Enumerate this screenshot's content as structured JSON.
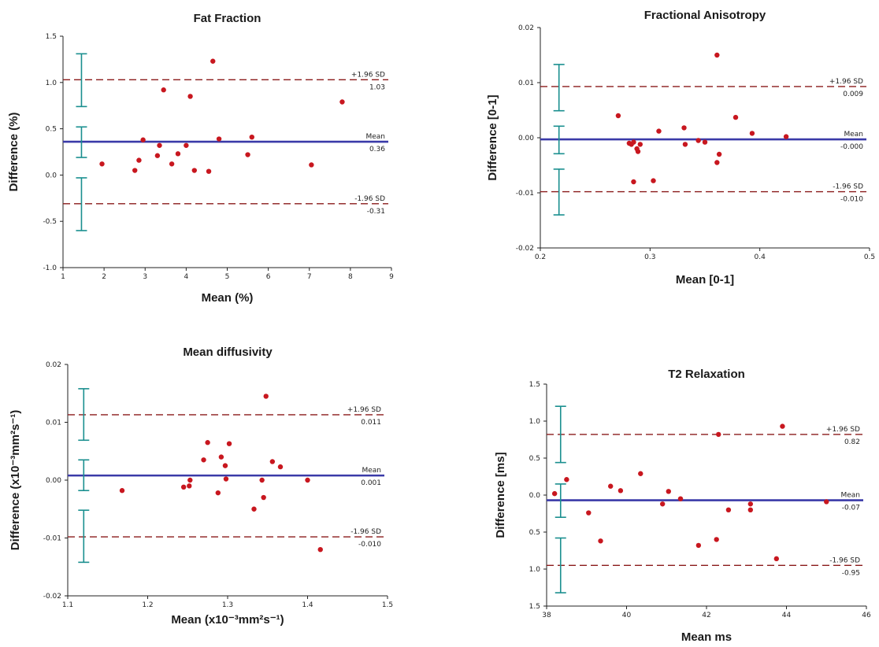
{
  "chart_data": [
    {
      "type": "scatter",
      "title": "Fat Fraction",
      "xlabel": "Mean (%)",
      "ylabel": "Difference (%)",
      "xlim": [
        1,
        9
      ],
      "ylim": [
        -1.0,
        1.5
      ],
      "x_ticks": [
        "1",
        "2",
        "3",
        "4",
        "5",
        "6",
        "7",
        "8",
        "9"
      ],
      "y_ticks": [
        "1.5",
        "1.0",
        "0.5",
        "0.0",
        "-0.5",
        "-1.0"
      ],
      "lines": {
        "upper": 1.03,
        "mean": 0.36,
        "lower": -0.31
      },
      "ref_labels": {
        "upper_name": "+1.96 SD",
        "upper_val": "1.03",
        "mean_name": "Mean",
        "mean_val": "0.36",
        "lower_name": "-1.96 SD",
        "lower_val": "-0.31"
      },
      "ci_x": 1.45,
      "ci_bars": [
        [
          0.74,
          1.31
        ],
        [
          0.19,
          0.52
        ],
        [
          -0.6,
          -0.03
        ]
      ],
      "points": [
        [
          1.95,
          0.12
        ],
        [
          2.75,
          0.05
        ],
        [
          2.85,
          0.16
        ],
        [
          2.95,
          0.38
        ],
        [
          3.3,
          0.21
        ],
        [
          3.35,
          0.32
        ],
        [
          3.45,
          0.92
        ],
        [
          3.65,
          0.12
        ],
        [
          3.8,
          0.23
        ],
        [
          4.0,
          0.32
        ],
        [
          4.1,
          0.85
        ],
        [
          4.2,
          0.05
        ],
        [
          4.55,
          0.04
        ],
        [
          4.65,
          1.23
        ],
        [
          4.8,
          0.39
        ],
        [
          5.5,
          0.22
        ],
        [
          5.6,
          0.41
        ],
        [
          7.05,
          0.11
        ],
        [
          7.8,
          0.79
        ]
      ]
    },
    {
      "type": "scatter",
      "title": "Fractional Anisotropy",
      "xlabel": "Mean [0-1]",
      "ylabel": "Difference [0-1]",
      "xlim": [
        0.2,
        0.5
      ],
      "ylim": [
        -0.02,
        0.02
      ],
      "x_ticks": [
        "0.2",
        "0.3",
        "0.4",
        "0.5"
      ],
      "y_ticks": [
        "0.02",
        "0.01",
        "0.00",
        "-0.01",
        "-0.02"
      ],
      "lines": {
        "upper": 0.0093,
        "mean": -0.0003,
        "lower": -0.0098
      },
      "ref_labels": {
        "upper_name": "+1.96 SD",
        "upper_val": "0.009",
        "mean_name": "Mean",
        "mean_val": "-0.000",
        "lower_name": "-1.96 SD",
        "lower_val": "-0.010"
      },
      "ci_x": 0.217,
      "ci_bars": [
        [
          0.0049,
          0.0133
        ],
        [
          -0.0029,
          0.0021
        ],
        [
          -0.014,
          -0.0057
        ]
      ],
      "points": [
        [
          0.271,
          0.004
        ],
        [
          0.281,
          -0.001
        ],
        [
          0.283,
          -0.0012
        ],
        [
          0.285,
          -0.0008
        ],
        [
          0.285,
          -0.008
        ],
        [
          0.288,
          -0.002
        ],
        [
          0.289,
          -0.0025
        ],
        [
          0.291,
          -0.0012
        ],
        [
          0.303,
          -0.0078
        ],
        [
          0.308,
          0.0012
        ],
        [
          0.331,
          0.0018
        ],
        [
          0.332,
          -0.0012
        ],
        [
          0.344,
          -0.0005
        ],
        [
          0.35,
          -0.0008
        ],
        [
          0.361,
          0.015
        ],
        [
          0.361,
          -0.0045
        ],
        [
          0.363,
          -0.003
        ],
        [
          0.378,
          0.0037
        ],
        [
          0.393,
          0.0008
        ],
        [
          0.424,
          0.0002
        ]
      ]
    },
    {
      "type": "scatter",
      "title": "Mean diffusivity",
      "xlabel": "Mean (x10⁻³mm²s⁻¹)",
      "ylabel": "Difference (x10⁻³mm²s⁻¹)",
      "xlim": [
        1.1,
        1.5
      ],
      "ylim": [
        -0.02,
        0.02
      ],
      "x_ticks": [
        "1.1",
        "1.2",
        "1.3",
        "1.4",
        "1.5"
      ],
      "y_ticks": [
        "0.02",
        "0.01",
        "0.00",
        "-0.01",
        "-0.02"
      ],
      "lines": {
        "upper": 0.0113,
        "mean": 0.0008,
        "lower": -0.0098
      },
      "ref_labels": {
        "upper_name": "+1.96 SD",
        "upper_val": "0.011",
        "mean_name": "Mean",
        "mean_val": "0.001",
        "lower_name": "-1.96 SD",
        "lower_val": "-0.010"
      },
      "ci_x": 1.12,
      "ci_bars": [
        [
          0.0069,
          0.0158
        ],
        [
          -0.0018,
          0.0035
        ],
        [
          -0.0142,
          -0.0052
        ]
      ],
      "points": [
        [
          1.168,
          -0.0018
        ],
        [
          1.245,
          -0.0012
        ],
        [
          1.252,
          -0.001
        ],
        [
          1.253,
          0.0
        ],
        [
          1.27,
          0.0035
        ],
        [
          1.275,
          0.0065
        ],
        [
          1.288,
          -0.0022
        ],
        [
          1.292,
          0.004
        ],
        [
          1.297,
          0.0025
        ],
        [
          1.298,
          0.0002
        ],
        [
          1.302,
          0.0063
        ],
        [
          1.333,
          -0.005
        ],
        [
          1.343,
          0.0
        ],
        [
          1.345,
          -0.003
        ],
        [
          1.348,
          0.0145
        ],
        [
          1.356,
          0.0032
        ],
        [
          1.366,
          0.0023
        ],
        [
          1.4,
          0.0
        ],
        [
          1.416,
          -0.012
        ]
      ]
    },
    {
      "type": "scatter",
      "title": "T2 Relaxation",
      "xlabel": "Mean ms",
      "ylabel": "Difference [ms]",
      "xlim": [
        38,
        46
      ],
      "ylim": [
        -1.5,
        1.5
      ],
      "x_ticks": [
        "38",
        "40",
        "42",
        "44",
        "46"
      ],
      "y_ticks": [
        "1.5",
        "1.0",
        "0.5",
        "0.0",
        "0.5",
        "1.0",
        "1.5"
      ],
      "lines": {
        "upper": 0.82,
        "mean": -0.07,
        "lower": -0.95
      },
      "ref_labels": {
        "upper_name": "+1.96 SD",
        "upper_val": "0.82",
        "mean_name": "Mean",
        "mean_val": "-0.07",
        "lower_name": "-1.96 SD",
        "lower_val": "-0.95"
      },
      "ci_x": 38.35,
      "ci_bars": [
        [
          0.44,
          1.2
        ],
        [
          -0.3,
          0.15
        ],
        [
          -1.32,
          -0.58
        ]
      ],
      "points": [
        [
          38.2,
          0.02
        ],
        [
          38.5,
          0.21
        ],
        [
          39.05,
          -0.24
        ],
        [
          39.35,
          -0.62
        ],
        [
          39.6,
          0.12
        ],
        [
          39.85,
          0.06
        ],
        [
          40.35,
          0.29
        ],
        [
          40.9,
          -0.12
        ],
        [
          41.05,
          0.05
        ],
        [
          41.35,
          -0.05
        ],
        [
          41.8,
          -0.68
        ],
        [
          42.25,
          -0.6
        ],
        [
          42.3,
          0.82
        ],
        [
          42.55,
          -0.2
        ],
        [
          43.1,
          -0.12
        ],
        [
          43.1,
          -0.2
        ],
        [
          43.75,
          -0.86
        ],
        [
          43.9,
          0.93
        ],
        [
          45.0,
          -0.09
        ]
      ]
    }
  ]
}
